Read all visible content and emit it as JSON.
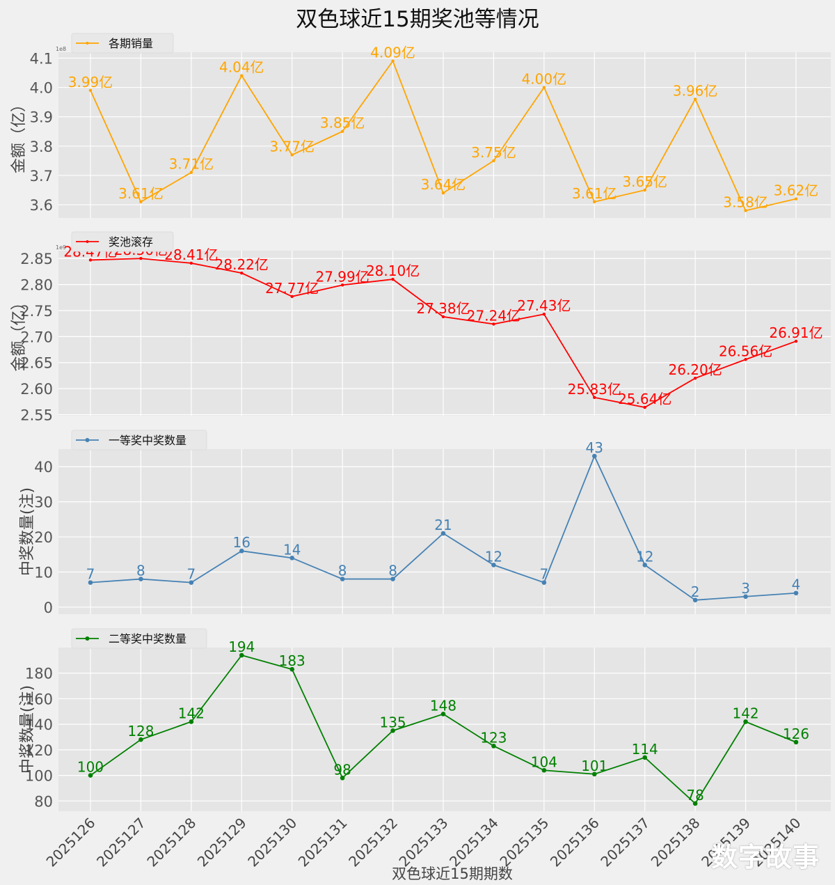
{
  "title": "双色球近15期奖池等情况",
  "watermark": "数字故事",
  "chart_data": {
    "type": "line",
    "title": "双色球近15期奖池等情况",
    "xlabel": "双色球近15期期数",
    "categories": [
      "2025126",
      "2025127",
      "2025128",
      "2025129",
      "2025130",
      "2025131",
      "2025132",
      "2025133",
      "2025134",
      "2025135",
      "2025136",
      "2025137",
      "2025138",
      "2025139",
      "2025140"
    ],
    "panels": [
      {
        "name": "sales",
        "legend": "各期销量",
        "legend_position": "top-left",
        "color": "#ffa500",
        "ylabel": "金额（亿）",
        "offset_text": "1e8",
        "ylim": [
          3.555,
          4.12
        ],
        "yticks": [
          3.6,
          3.7,
          3.8,
          3.9,
          4.0,
          4.1
        ],
        "ytick_labels": [
          "3.6",
          "3.7",
          "3.8",
          "3.9",
          "4.0",
          "4.1"
        ],
        "values": [
          3.99,
          3.61,
          3.71,
          4.04,
          3.77,
          3.85,
          4.09,
          3.64,
          3.75,
          4.0,
          3.61,
          3.65,
          3.96,
          3.58,
          3.62
        ],
        "labels": [
          "3.99亿",
          "3.61亿",
          "3.71亿",
          "4.04亿",
          "3.77亿",
          "3.85亿",
          "4.09亿",
          "3.64亿",
          "3.75亿",
          "4.00亿",
          "3.61亿",
          "3.65亿",
          "3.96亿",
          "3.58亿",
          "3.62亿"
        ],
        "unit_scale": "1e8"
      },
      {
        "name": "pool",
        "legend": "奖池滚存",
        "legend_position": "top-left",
        "color": "#ff0000",
        "ylabel": "金额（亿）",
        "offset_text": "1e9",
        "ylim": [
          2.548,
          2.865
        ],
        "yticks": [
          2.55,
          2.6,
          2.65,
          2.7,
          2.75,
          2.8,
          2.85
        ],
        "ytick_labels": [
          "2.55",
          "2.60",
          "2.65",
          "2.70",
          "2.75",
          "2.80",
          "2.85"
        ],
        "values": [
          2.847,
          2.85,
          2.841,
          2.822,
          2.777,
          2.799,
          2.81,
          2.738,
          2.724,
          2.743,
          2.583,
          2.564,
          2.62,
          2.656,
          2.691
        ],
        "labels": [
          "28.47亿",
          "28.50亿",
          "28.41亿",
          "28.22亿",
          "27.77亿",
          "27.99亿",
          "28.10亿",
          "27.38亿",
          "27.24亿",
          "27.43亿",
          "25.83亿",
          "25.64亿",
          "26.20亿",
          "26.56亿",
          "26.91亿"
        ],
        "unit_scale": "1e9"
      },
      {
        "name": "first_prize",
        "legend": "一等奖中奖数量",
        "legend_position": "top-left",
        "color": "#4682b4",
        "ylabel": "中奖数量(注)",
        "ylim": [
          -2,
          45
        ],
        "yticks": [
          0,
          10,
          20,
          30,
          40
        ],
        "ytick_labels": [
          "0",
          "10",
          "20",
          "30",
          "40"
        ],
        "values": [
          7,
          8,
          7,
          16,
          14,
          8,
          8,
          21,
          12,
          7,
          43,
          12,
          2,
          3,
          4
        ],
        "labels": [
          "7",
          "8",
          "7",
          "16",
          "14",
          "8",
          "8",
          "21",
          "12",
          "7",
          "43",
          "12",
          "2",
          "3",
          "4"
        ]
      },
      {
        "name": "second_prize",
        "legend": "二等奖中奖数量",
        "legend_position": "top-left",
        "color": "#008000",
        "ylabel": "中奖数量(注)",
        "ylim": [
          72,
          200
        ],
        "yticks": [
          80,
          100,
          120,
          140,
          160,
          180
        ],
        "ytick_labels": [
          "80",
          "100",
          "120",
          "140",
          "160",
          "180"
        ],
        "values": [
          100,
          128,
          142,
          194,
          183,
          98,
          135,
          148,
          123,
          104,
          101,
          114,
          78,
          142,
          126
        ],
        "labels": [
          "100",
          "128",
          "142",
          "194",
          "183",
          "98",
          "135",
          "148",
          "123",
          "104",
          "101",
          "114",
          "78",
          "142",
          "126"
        ]
      }
    ],
    "grid": true
  }
}
